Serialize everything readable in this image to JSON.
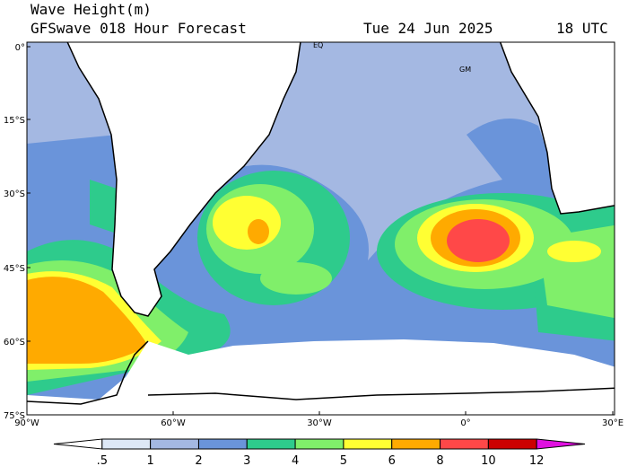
{
  "header": {
    "title": "Wave Height(m)",
    "subtitle": "GFSwave 018 Hour Forecast",
    "date": "Tue 24 Jun 2025",
    "time": "18 UTC"
  },
  "map": {
    "lat_labels": [
      "0°",
      "15°S",
      "30°S",
      "45°S",
      "60°S",
      "75°S"
    ],
    "lon_labels": [
      "90°W",
      "60°W",
      "30°W",
      "0°",
      "30°E"
    ],
    "markers": [
      "EQ",
      "GM"
    ]
  },
  "legend": {
    "labels": [
      ".5",
      "1",
      "2",
      "3",
      "4",
      "5",
      "6",
      "8",
      "10",
      "12"
    ],
    "colors": [
      "#ffffff",
      "#dde8f6",
      "#a4b8e2",
      "#6a94da",
      "#2ecb8c",
      "#80ef6a",
      "#ffff33",
      "#ffaa00",
      "#ff4848",
      "#cc0000",
      "#e010e0"
    ]
  }
}
